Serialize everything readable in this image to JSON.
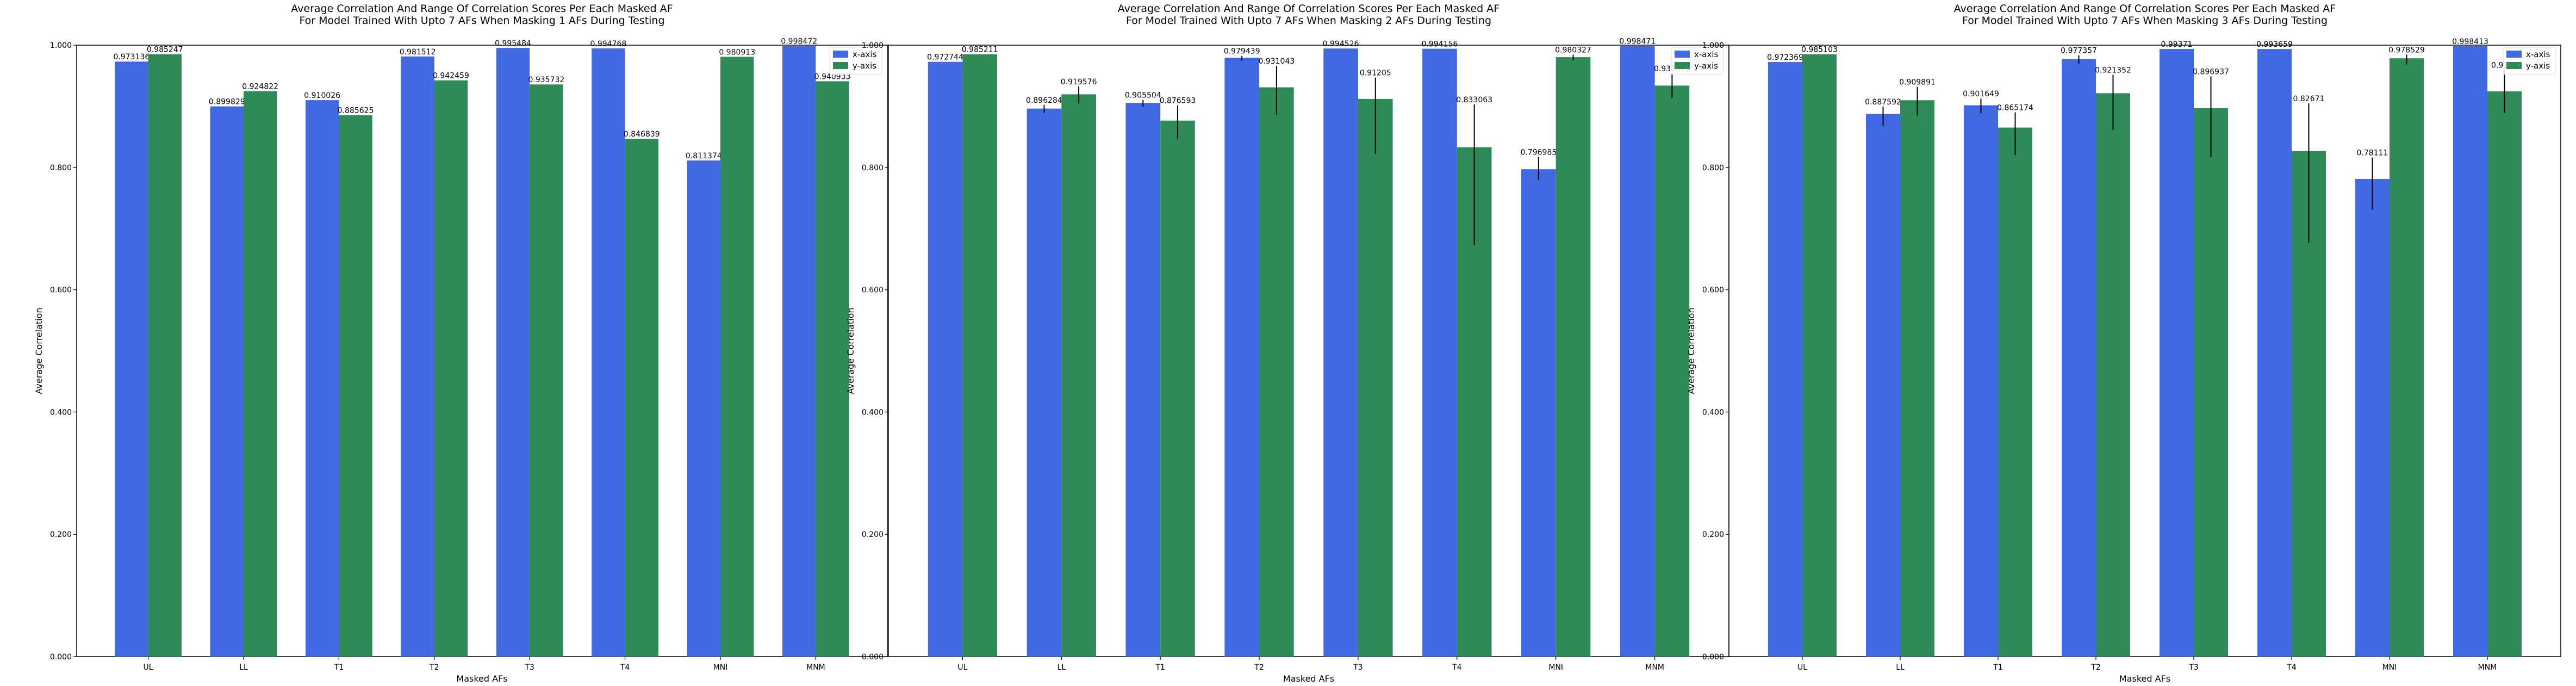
{
  "colors": {
    "x_axis": "#4169E1",
    "y_axis": "#2E8B57",
    "errorbar": "#000000"
  },
  "chart_data": [
    {
      "type": "bar",
      "title": "Average Correlation And Range Of Correlation Scores Per Each Masked AF",
      "subtitle": "For Model Trained With Upto 7 AFs When Masking 1 AFs During Testing",
      "xlabel": "Masked AFs",
      "ylabel": "Average Correlation",
      "ylim": [
        0,
        1.0
      ],
      "yticks": [
        "0.000",
        "0.200",
        "0.400",
        "0.600",
        "0.800",
        "1.000"
      ],
      "categories": [
        "UL",
        "LL",
        "T1",
        "T2",
        "T3",
        "T4",
        "MNI",
        "MNM"
      ],
      "legend_position": "top-right",
      "series": [
        {
          "name": "x-axis",
          "values": [
            0.973136,
            0.899829,
            0.910026,
            0.981512,
            0.995484,
            0.994768,
            0.811374,
            0.998472
          ],
          "labels": [
            "0.973136",
            "0.899829",
            "0.910026",
            "0.981512",
            "0.995484",
            "0.994768",
            "0.811374",
            "0.998472"
          ],
          "err_low": [
            0,
            0,
            0,
            0,
            0,
            0,
            0,
            0
          ],
          "err_high": [
            0,
            0,
            0,
            0,
            0,
            0,
            0,
            0
          ]
        },
        {
          "name": "y-axis",
          "values": [
            0.985247,
            0.924822,
            0.885625,
            0.942459,
            0.935732,
            0.846839,
            0.980913,
            0.940933
          ],
          "labels": [
            "0.985247",
            "0.924822",
            "0.885625",
            "0.942459",
            "0.935732",
            "0.846839",
            "0.980913",
            "0.940933"
          ],
          "err_low": [
            0,
            0,
            0,
            0,
            0,
            0,
            0,
            0
          ],
          "err_high": [
            0,
            0,
            0,
            0,
            0,
            0,
            0,
            0
          ]
        }
      ]
    },
    {
      "type": "bar",
      "title": "Average Correlation And Range Of Correlation Scores Per Each Masked AF",
      "subtitle": "For Model Trained With Upto 7 AFs When Masking 2 AFs During Testing",
      "xlabel": "Masked AFs",
      "ylabel": "Average Correlation",
      "ylim": [
        0,
        1.0
      ],
      "yticks": [
        "0.000",
        "0.200",
        "0.400",
        "0.600",
        "0.800",
        "1.000"
      ],
      "categories": [
        "UL",
        "LL",
        "T1",
        "T2",
        "T3",
        "T4",
        "MNI",
        "MNM"
      ],
      "legend_position": "top-right",
      "series": [
        {
          "name": "x-axis",
          "values": [
            0.972744,
            0.896284,
            0.905504,
            0.979439,
            0.994526,
            0.994156,
            0.796985,
            0.998471
          ],
          "labels": [
            "0.972744",
            "0.896284",
            "0.905504",
            "0.979439",
            "0.994526",
            "0.994156",
            "0.796985",
            "0.998471"
          ],
          "err_low": [
            0,
            0.007,
            0.006,
            0.005,
            0,
            0,
            0.018,
            0
          ],
          "err_high": [
            0,
            0.006,
            0.005,
            0.003,
            0,
            0,
            0.02,
            0
          ]
        },
        {
          "name": "y-axis",
          "values": [
            0.985211,
            0.919576,
            0.876593,
            0.931043,
            0.91205,
            0.833063,
            0.980327,
            0.933873
          ],
          "labels": [
            "0.985211",
            "0.919576",
            "0.876593",
            "0.931043",
            "0.91205",
            "0.833063",
            "0.980327",
            "0.933873"
          ],
          "err_low": [
            0,
            0.015,
            0.03,
            0.045,
            0.09,
            0.16,
            0.005,
            0.02
          ],
          "err_high": [
            0,
            0.013,
            0.025,
            0.035,
            0.035,
            0.07,
            0.004,
            0.02
          ]
        }
      ]
    },
    {
      "type": "bar",
      "title": "Average Correlation And Range Of Correlation Scores Per Each Masked AF",
      "subtitle": "For Model Trained With Upto 7 AFs When Masking 3 AFs During Testing",
      "xlabel": "Masked AFs",
      "ylabel": "Average Correlation",
      "ylim": [
        0,
        1.0
      ],
      "yticks": [
        "0.000",
        "0.200",
        "0.400",
        "0.600",
        "0.800",
        "1.000"
      ],
      "categories": [
        "UL",
        "LL",
        "T1",
        "T2",
        "T3",
        "T4",
        "MNI",
        "MNM"
      ],
      "legend_position": "top-right",
      "series": [
        {
          "name": "x-axis",
          "values": [
            0.972369,
            0.887592,
            0.901649,
            0.977357,
            0.99371,
            0.993659,
            0.78111,
            0.998413
          ],
          "labels": [
            "0.972369",
            "0.887592",
            "0.901649",
            "0.977357",
            "0.99371",
            "0.993659",
            "0.78111",
            "0.998413"
          ],
          "err_low": [
            0,
            0.02,
            0.013,
            0.008,
            0,
            0,
            0.05,
            0
          ],
          "err_high": [
            0,
            0.012,
            0.011,
            0.006,
            0,
            0,
            0.035,
            0
          ]
        },
        {
          "name": "y-axis",
          "values": [
            0.985103,
            0.909891,
            0.865174,
            0.921352,
            0.896937,
            0.82671,
            0.978529,
            0.9245
          ],
          "labels": [
            "0.985103",
            "0.909891",
            "0.865174",
            "0.921352",
            "0.896937",
            "0.82671",
            "0.978529",
            "0.9245"
          ],
          "err_low": [
            0,
            0.025,
            0.045,
            0.06,
            0.08,
            0.15,
            0.01,
            0.035
          ],
          "err_high": [
            0,
            0.022,
            0.025,
            0.03,
            0.052,
            0.078,
            0.006,
            0.035
          ]
        }
      ]
    }
  ]
}
